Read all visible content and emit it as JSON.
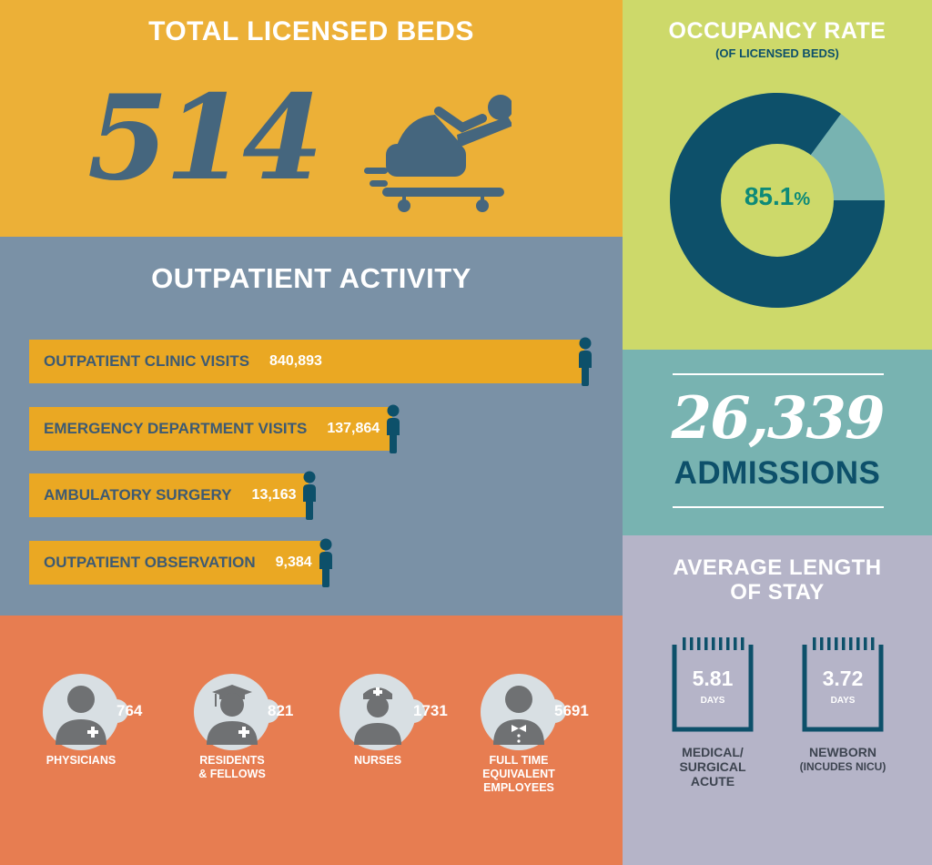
{
  "colors": {
    "orange_gold": "#ecb037",
    "slate_blue": "#7a91a6",
    "coral": "#e77d51",
    "lime": "#cdd96a",
    "teal_light": "#78b3b1",
    "lavender": "#b5b4c8",
    "navy": "#0d506a",
    "bar_gold": "#eaa823",
    "icon_blue": "#45667e",
    "label_navy": "#3d5a73"
  },
  "beds": {
    "title": "TOTAL LICENSED BEDS",
    "count": "514",
    "icon": "hospital-bed-icon"
  },
  "outpatient": {
    "title": "OUTPATIENT ACTIVITY",
    "bars": [
      {
        "label": "OUTPATIENT CLINIC VISITS",
        "value": "840,893",
        "amount": 840893
      },
      {
        "label": "EMERGENCY DEPARTMENT VISITS",
        "value": "137,864",
        "amount": 137864
      },
      {
        "label": "AMBULATORY SURGERY",
        "value": "13,163",
        "amount": 13163
      },
      {
        "label": "OUTPATIENT OBSERVATION",
        "value": "9,384",
        "amount": 9384
      }
    ],
    "icon": "person-icon"
  },
  "staff": {
    "items": [
      {
        "count": "764",
        "label_lines": [
          "PHYSICIANS"
        ],
        "icon": "physician-icon"
      },
      {
        "count": "821",
        "label_lines": [
          "RESIDENTS",
          "& FELLOWS"
        ],
        "icon": "graduate-icon"
      },
      {
        "count": "1731",
        "label_lines": [
          "NURSES"
        ],
        "icon": "nurse-icon"
      },
      {
        "count": "5691",
        "label_lines": [
          "FULL TIME",
          "EQUIVALENT",
          "EMPLOYEES"
        ],
        "icon": "employee-icon"
      }
    ]
  },
  "occupancy": {
    "title": "OCCUPANCY RATE",
    "subtitle": "(OF LICENSED BEDS)",
    "value_text": "85.1",
    "unit": "%",
    "percent": 85.1
  },
  "admissions": {
    "number": "26,339",
    "label": "ADMISSIONS"
  },
  "stay": {
    "title_line1": "AVERAGE LENGTH",
    "title_line2": "OF STAY",
    "items": [
      {
        "value": "5.81",
        "unit": "DAYS",
        "label_lines": [
          "MEDICAL/",
          "SURGICAL",
          "ACUTE"
        ],
        "icon": "calendar-icon"
      },
      {
        "value": "3.72",
        "unit": "DAYS",
        "label_lines": [
          "NEWBORN",
          "(INCUDES NICU)"
        ],
        "icon": "calendar-icon"
      }
    ]
  }
}
